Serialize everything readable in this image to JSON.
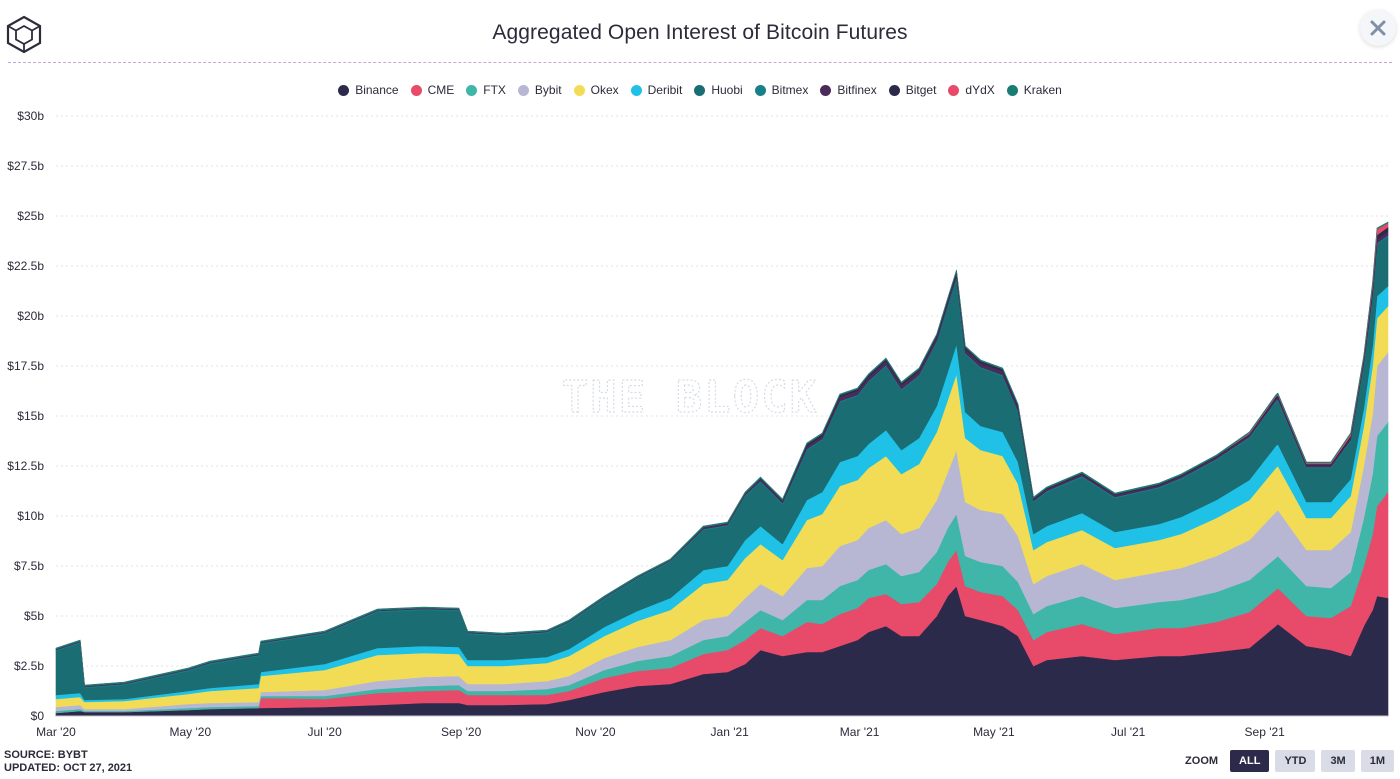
{
  "header": {
    "title": "Aggregated Open Interest of Bitcoin Futures"
  },
  "icons": {
    "logo": "cube-logo-icon",
    "close": "close-icon"
  },
  "legend": [
    {
      "name": "Binance",
      "color": "#2c2a4a"
    },
    {
      "name": "CME",
      "color": "#e84a6a"
    },
    {
      "name": "FTX",
      "color": "#3fb6a8"
    },
    {
      "name": "Bybit",
      "color": "#b7b7d4"
    },
    {
      "name": "Okex",
      "color": "#f2dc55"
    },
    {
      "name": "Deribit",
      "color": "#1fc1e6"
    },
    {
      "name": "Huobi",
      "color": "#1a6d73"
    },
    {
      "name": "Bitmex",
      "color": "#17808a"
    },
    {
      "name": "Bitfinex",
      "color": "#4a2b5a"
    },
    {
      "name": "Bitget",
      "color": "#2c2a4a"
    },
    {
      "name": "dYdX",
      "color": "#e84a6a"
    },
    {
      "name": "Kraken",
      "color": "#1a7d73"
    }
  ],
  "watermark": "THE BLOCK",
  "footer": {
    "source": "SOURCE: BYBT",
    "updated": "UPDATED: OCT 27, 2021"
  },
  "zoom": {
    "label": "ZOOM",
    "options": [
      "ALL",
      "YTD",
      "3M",
      "1M"
    ],
    "active": "ALL"
  },
  "chart_data": {
    "type": "area",
    "stacked": true,
    "title": "Aggregated Open Interest of Bitcoin Futures",
    "ylabel": "",
    "xlabel": "",
    "ylim": [
      0,
      30
    ],
    "y_unit": "billion USD",
    "y_ticks": [
      "$0",
      "$2.5b",
      "$5b",
      "$7.5b",
      "$10b",
      "$12.5b",
      "$15b",
      "$17.5b",
      "$20b",
      "$22.5b",
      "$25b",
      "$27.5b",
      "$30b"
    ],
    "x_ticks": [
      "Mar '20",
      "May '20",
      "Jul '20",
      "Sep '20",
      "Nov '20",
      "Jan '21",
      "Mar '21",
      "May '21",
      "Jul '21",
      "Sep '21"
    ],
    "x": [
      "2020-03-01",
      "2020-03-12",
      "2020-03-14",
      "2020-04-01",
      "2020-04-30",
      "2020-05-10",
      "2020-06-01",
      "2020-06-02",
      "2020-07-01",
      "2020-07-25",
      "2020-08-15",
      "2020-08-31",
      "2020-09-04",
      "2020-09-20",
      "2020-10-10",
      "2020-10-20",
      "2020-11-05",
      "2020-11-20",
      "2020-12-05",
      "2020-12-20",
      "2020-12-31",
      "2021-01-08",
      "2021-01-15",
      "2021-01-25",
      "2021-02-05",
      "2021-02-12",
      "2021-02-20",
      "2021-02-28",
      "2021-03-05",
      "2021-03-13",
      "2021-03-20",
      "2021-03-28",
      "2021-04-05",
      "2021-04-10",
      "2021-04-14",
      "2021-04-18",
      "2021-04-25",
      "2021-05-05",
      "2021-05-12",
      "2021-05-19",
      "2021-05-25",
      "2021-06-10",
      "2021-06-25",
      "2021-07-15",
      "2021-07-25",
      "2021-08-10",
      "2021-08-25",
      "2021-09-06",
      "2021-09-07",
      "2021-09-20",
      "2021-10-01",
      "2021-10-10",
      "2021-10-16",
      "2021-10-20",
      "2021-10-22",
      "2021-10-27"
    ],
    "series": [
      {
        "name": "Binance",
        "values": [
          0.15,
          0.25,
          0.2,
          0.2,
          0.3,
          0.35,
          0.4,
          0.4,
          0.45,
          0.55,
          0.65,
          0.65,
          0.55,
          0.55,
          0.6,
          0.8,
          1.2,
          1.5,
          1.6,
          2.1,
          2.2,
          2.6,
          3.3,
          3.0,
          3.2,
          3.2,
          3.5,
          3.8,
          4.2,
          4.5,
          4.0,
          4.0,
          5.0,
          6.0,
          6.5,
          5.0,
          4.8,
          4.5,
          4.0,
          2.5,
          2.8,
          3.0,
          2.8,
          3.0,
          3.0,
          3.2,
          3.4,
          4.5,
          4.6,
          3.5,
          3.3,
          3.0,
          4.5,
          5.3,
          6.0,
          5.9
        ]
      },
      {
        "name": "CME",
        "values": [
          0.0,
          0.0,
          0.0,
          0.0,
          0.0,
          0.0,
          0.0,
          0.5,
          0.4,
          0.6,
          0.6,
          0.65,
          0.5,
          0.5,
          0.45,
          0.45,
          0.7,
          0.75,
          0.8,
          1.0,
          1.1,
          1.2,
          1.1,
          1.0,
          1.5,
          1.4,
          1.6,
          1.6,
          1.7,
          1.6,
          1.6,
          1.7,
          1.6,
          1.7,
          1.8,
          1.5,
          1.4,
          1.5,
          1.3,
          1.3,
          1.4,
          1.6,
          1.3,
          1.4,
          1.4,
          1.5,
          1.8,
          1.8,
          1.8,
          1.5,
          1.6,
          2.5,
          3.0,
          3.8,
          4.5,
          5.3
        ]
      },
      {
        "name": "FTX",
        "values": [
          0.1,
          0.1,
          0.05,
          0.05,
          0.1,
          0.1,
          0.1,
          0.1,
          0.15,
          0.2,
          0.25,
          0.25,
          0.2,
          0.2,
          0.3,
          0.3,
          0.4,
          0.5,
          0.6,
          0.7,
          0.7,
          0.9,
          0.9,
          0.8,
          1.1,
          1.2,
          1.4,
          1.4,
          1.4,
          1.5,
          1.4,
          1.5,
          1.6,
          1.7,
          1.8,
          1.5,
          1.5,
          1.5,
          1.4,
          1.3,
          1.3,
          1.4,
          1.3,
          1.3,
          1.4,
          1.5,
          1.6,
          1.6,
          1.6,
          1.5,
          1.5,
          1.7,
          2.4,
          3.0,
          3.5,
          3.5
        ]
      },
      {
        "name": "Bybit",
        "values": [
          0.2,
          0.2,
          0.1,
          0.1,
          0.2,
          0.2,
          0.2,
          0.2,
          0.3,
          0.4,
          0.45,
          0.45,
          0.35,
          0.35,
          0.4,
          0.45,
          0.6,
          0.7,
          0.8,
          1.0,
          1.0,
          1.2,
          1.3,
          1.2,
          1.6,
          1.7,
          2.0,
          2.0,
          2.1,
          2.2,
          2.1,
          2.2,
          2.6,
          2.8,
          3.2,
          2.7,
          2.6,
          2.6,
          2.3,
          1.5,
          1.5,
          1.6,
          1.4,
          1.5,
          1.6,
          1.8,
          2.0,
          2.3,
          2.3,
          1.8,
          1.9,
          2.0,
          2.6,
          3.0,
          3.5,
          3.5
        ]
      },
      {
        "name": "Okex",
        "values": [
          0.4,
          0.4,
          0.35,
          0.4,
          0.5,
          0.6,
          0.7,
          0.8,
          1.0,
          1.3,
          1.2,
          1.1,
          0.9,
          0.9,
          0.9,
          1.0,
          1.1,
          1.3,
          1.5,
          1.8,
          1.8,
          2.0,
          2.0,
          1.8,
          2.4,
          2.6,
          3.0,
          3.0,
          3.0,
          3.2,
          3.0,
          3.2,
          3.4,
          3.6,
          3.8,
          3.2,
          3.0,
          2.9,
          2.6,
          1.7,
          1.7,
          1.7,
          1.6,
          1.6,
          1.7,
          1.9,
          2.0,
          2.2,
          2.2,
          1.6,
          1.6,
          1.8,
          2.0,
          2.4,
          2.4,
          2.3
        ]
      },
      {
        "name": "Deribit",
        "values": [
          0.2,
          0.2,
          0.1,
          0.1,
          0.15,
          0.15,
          0.2,
          0.2,
          0.3,
          0.35,
          0.35,
          0.35,
          0.3,
          0.3,
          0.3,
          0.35,
          0.45,
          0.5,
          0.6,
          0.7,
          0.7,
          0.9,
          0.9,
          0.8,
          1.0,
          1.1,
          1.2,
          1.2,
          1.2,
          1.3,
          1.2,
          1.3,
          1.3,
          1.4,
          1.5,
          1.3,
          1.2,
          1.2,
          1.1,
          0.8,
          0.8,
          0.85,
          0.8,
          0.8,
          0.85,
          0.9,
          1.0,
          1.1,
          1.1,
          0.8,
          0.8,
          0.85,
          0.9,
          1.0,
          1.1,
          1.0
        ]
      },
      {
        "name": "Huobi",
        "values": [
          2.2,
          2.5,
          0.6,
          0.7,
          1.0,
          1.2,
          1.4,
          1.4,
          1.5,
          1.8,
          1.8,
          1.8,
          1.3,
          1.2,
          1.2,
          1.3,
          1.4,
          1.6,
          1.8,
          2.0,
          2.0,
          2.2,
          2.2,
          2.0,
          2.5,
          2.6,
          3.0,
          3.0,
          3.1,
          3.2,
          3.0,
          3.1,
          3.2,
          3.3,
          3.3,
          2.9,
          2.9,
          2.8,
          2.5,
          1.6,
          1.7,
          1.8,
          1.7,
          1.8,
          1.9,
          2.0,
          2.1,
          2.2,
          2.2,
          1.7,
          1.7,
          1.9,
          2.2,
          2.5,
          2.6,
          2.5
        ]
      },
      {
        "name": "Bitmex",
        "values": [
          0.05,
          0.05,
          0.05,
          0.05,
          0.05,
          0.05,
          0.05,
          0.05,
          0.05,
          0.05,
          0.05,
          0.05,
          0.05,
          0.05,
          0.05,
          0.05,
          0.05,
          0.05,
          0.05,
          0.05,
          0.05,
          0.05,
          0.05,
          0.05,
          0.05,
          0.05,
          0.05,
          0.05,
          0.05,
          0.05,
          0.05,
          0.05,
          0.05,
          0.05,
          0.05,
          0.05,
          0.05,
          0.05,
          0.05,
          0.05,
          0.05,
          0.05,
          0.05,
          0.05,
          0.05,
          0.05,
          0.05,
          0.05,
          0.05,
          0.05,
          0.05,
          0.05,
          0.05,
          0.05,
          0.05,
          0.05
        ]
      },
      {
        "name": "Bitfinex",
        "values": [
          0.05,
          0.05,
          0.05,
          0.05,
          0.05,
          0.05,
          0.05,
          0.05,
          0.05,
          0.05,
          0.05,
          0.05,
          0.05,
          0.05,
          0.05,
          0.05,
          0.05,
          0.05,
          0.05,
          0.1,
          0.1,
          0.1,
          0.1,
          0.1,
          0.15,
          0.15,
          0.2,
          0.2,
          0.2,
          0.2,
          0.2,
          0.2,
          0.2,
          0.2,
          0.2,
          0.2,
          0.2,
          0.2,
          0.2,
          0.1,
          0.1,
          0.1,
          0.1,
          0.1,
          0.1,
          0.1,
          0.1,
          0.1,
          0.1,
          0.1,
          0.1,
          0.1,
          0.15,
          0.2,
          0.2,
          0.2
        ]
      },
      {
        "name": "Bitget",
        "values": [
          0.0,
          0.0,
          0.0,
          0.0,
          0.0,
          0.0,
          0.0,
          0.0,
          0.0,
          0.0,
          0.0,
          0.0,
          0.0,
          0.0,
          0.0,
          0.0,
          0.0,
          0.0,
          0.0,
          0.0,
          0.0,
          0.0,
          0.05,
          0.05,
          0.1,
          0.1,
          0.1,
          0.1,
          0.1,
          0.1,
          0.1,
          0.1,
          0.1,
          0.1,
          0.1,
          0.1,
          0.1,
          0.1,
          0.1,
          0.05,
          0.05,
          0.05,
          0.05,
          0.05,
          0.05,
          0.05,
          0.05,
          0.1,
          0.1,
          0.05,
          0.05,
          0.1,
          0.1,
          0.2,
          0.2,
          0.2
        ]
      },
      {
        "name": "dYdX",
        "values": [
          0.0,
          0.0,
          0.0,
          0.0,
          0.0,
          0.0,
          0.0,
          0.0,
          0.0,
          0.0,
          0.0,
          0.0,
          0.0,
          0.0,
          0.0,
          0.0,
          0.0,
          0.0,
          0.0,
          0.0,
          0.0,
          0.0,
          0.0,
          0.0,
          0.0,
          0.0,
          0.0,
          0.0,
          0.0,
          0.0,
          0.0,
          0.0,
          0.0,
          0.0,
          0.0,
          0.0,
          0.0,
          0.0,
          0.0,
          0.0,
          0.0,
          0.0,
          0.0,
          0.0,
          0.0,
          0.0,
          0.05,
          0.05,
          0.05,
          0.05,
          0.05,
          0.1,
          0.1,
          0.2,
          0.3,
          0.2
        ]
      },
      {
        "name": "Kraken",
        "values": [
          0.05,
          0.05,
          0.05,
          0.05,
          0.05,
          0.05,
          0.05,
          0.05,
          0.05,
          0.05,
          0.05,
          0.05,
          0.05,
          0.05,
          0.05,
          0.05,
          0.05,
          0.05,
          0.05,
          0.05,
          0.05,
          0.05,
          0.05,
          0.05,
          0.05,
          0.05,
          0.05,
          0.05,
          0.05,
          0.05,
          0.05,
          0.05,
          0.05,
          0.05,
          0.05,
          0.05,
          0.05,
          0.05,
          0.05,
          0.05,
          0.05,
          0.05,
          0.05,
          0.05,
          0.05,
          0.05,
          0.05,
          0.05,
          0.05,
          0.05,
          0.05,
          0.05,
          0.05,
          0.05,
          0.05,
          0.05
        ]
      }
    ]
  }
}
